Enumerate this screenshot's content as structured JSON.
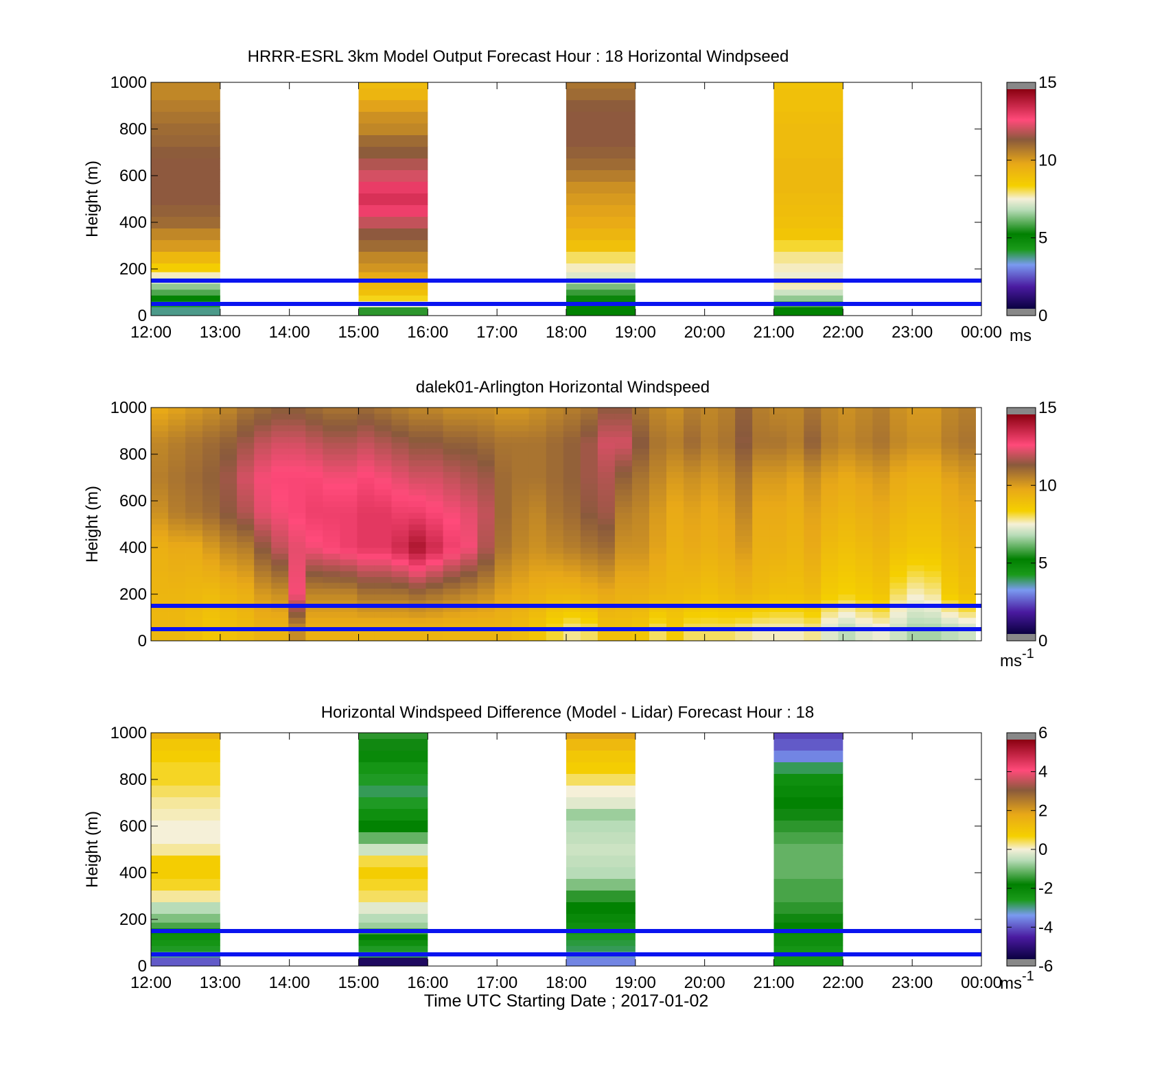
{
  "figure": {
    "xlabel": "Time UTC  Starting Date ; 2017-01-02",
    "reference_heights_m": [
      50,
      150
    ],
    "reference_line_color": "#0a14f0"
  },
  "chart_data": [
    {
      "type": "heatmap",
      "title": "HRRR-ESRL 3km Model Output   Forecast Hour : 18 Horizontal Windpseed",
      "ylabel": "Height (m)",
      "xlim": [
        "12:00",
        "00:00"
      ],
      "ylim": [
        0,
        1000
      ],
      "yticks": [
        "0",
        "200",
        "400",
        "600",
        "800",
        "1000"
      ],
      "xticks": [
        "12:00",
        "13:00",
        "14:00",
        "15:00",
        "16:00",
        "17:00",
        "18:00",
        "19:00",
        "20:00",
        "21:00",
        "22:00",
        "23:00",
        "00:00"
      ],
      "colorbar": {
        "min": 0,
        "max": 15,
        "ticks": [
          "0",
          "5",
          "10",
          "15"
        ],
        "unit": "ms",
        "unit_sup": "",
        "palette": "windspeed"
      },
      "heights_m": [
        25,
        50,
        75,
        100,
        125,
        150,
        175,
        200,
        250,
        300,
        350,
        400,
        450,
        500,
        550,
        600,
        650,
        700,
        750,
        800,
        850,
        900,
        950,
        1000
      ],
      "columns": [
        {
          "start": "12:00",
          "end": "13:00",
          "values": [
            3.5,
            4.0,
            5.0,
            5.8,
            6.4,
            7.0,
            7.6,
            8.5,
            9.3,
            10.2,
            10.6,
            11.2,
            11.4,
            11.6,
            11.6,
            11.6,
            11.6,
            11.5,
            11.3,
            11.2,
            11.0,
            10.8,
            10.6,
            10.6
          ]
        },
        {
          "start": "15:00",
          "end": "16:00",
          "values": [
            5.5,
            7.5,
            8.3,
            9.0,
            9.3,
            9.6,
            9.8,
            10.3,
            10.6,
            11.2,
            11.6,
            12.2,
            13.2,
            13.6,
            13.3,
            12.4,
            12.0,
            11.5,
            11.2,
            10.6,
            10.4,
            10.0,
            9.4,
            9.2
          ]
        },
        {
          "start": "18:00",
          "end": "19:00",
          "values": [
            5.0,
            5.0,
            5.2,
            5.6,
            6.2,
            6.8,
            7.2,
            7.6,
            8.0,
            9.0,
            9.4,
            9.8,
            10.0,
            10.2,
            10.4,
            10.8,
            11.2,
            11.4,
            11.6,
            11.6,
            11.6,
            11.5,
            11.2,
            11.0
          ]
        },
        {
          "start": "21:00",
          "end": "22:00",
          "values": [
            5.0,
            5.8,
            6.4,
            7.0,
            7.6,
            7.8,
            7.4,
            7.6,
            7.8,
            8.2,
            8.8,
            9.0,
            9.1,
            9.2,
            9.3,
            9.3,
            9.3,
            9.2,
            9.2,
            9.2,
            9.1,
            9.0,
            9.0,
            8.9
          ]
        }
      ]
    },
    {
      "type": "heatmap",
      "title": "dalek01-Arlington  Horizontal Windspeed",
      "ylabel": "Height (m)",
      "xlim": [
        "12:00",
        "00:00"
      ],
      "ylim": [
        0,
        1000
      ],
      "yticks": [
        "0",
        "200",
        "400",
        "600",
        "800",
        "1000"
      ],
      "xticks": [],
      "colorbar": {
        "min": 0,
        "max": 15,
        "ticks": [
          "0",
          "5",
          "10",
          "15"
        ],
        "unit": "ms",
        "unit_sup": "-1",
        "palette": "windspeed"
      },
      "x_start": "12:00",
      "x_end": "23:55",
      "column_count": 48,
      "heights_m": [
        50,
        200,
        400,
        550,
        700,
        850,
        1000
      ],
      "values_by_height": [
        [
          9.3,
          9.3,
          9.1,
          8.8,
          9.0,
          9.2,
          9.5,
          9.5,
          10.5,
          9.6,
          9.6,
          9.6,
          9.5,
          9.5,
          9.5,
          9.5,
          9.5,
          9.4,
          9.4,
          9.4,
          9.4,
          9.2,
          8.8,
          8.2,
          7.8,
          8.0,
          9.0,
          9.0,
          8.8,
          8.0,
          8.6,
          8.0,
          8.0,
          8.0,
          7.8,
          7.6,
          7.6,
          7.6,
          7.8,
          7.2,
          6.8,
          7.2,
          7.4,
          7.0,
          6.6,
          6.6,
          6.8,
          7.0
        ],
        [
          9.4,
          9.4,
          9.3,
          9.2,
          9.4,
          9.6,
          10.2,
          10.4,
          12.8,
          10.6,
          10.6,
          10.6,
          11.0,
          11.0,
          11.0,
          11.2,
          11.0,
          10.8,
          10.6,
          10.4,
          10.0,
          9.8,
          9.6,
          9.4,
          9.4,
          9.6,
          9.8,
          9.6,
          9.6,
          9.4,
          9.3,
          9.2,
          9.0,
          9.2,
          9.4,
          9.2,
          9.0,
          9.0,
          9.2,
          8.6,
          8.4,
          8.6,
          8.8,
          8.0,
          7.6,
          7.8,
          8.6,
          9.0
        ],
        [
          9.6,
          9.8,
          9.8,
          10.2,
          10.6,
          10.8,
          11.6,
          12.2,
          12.6,
          12.8,
          13.0,
          13.2,
          13.4,
          13.4,
          13.8,
          14.4,
          13.8,
          13.2,
          12.8,
          12.0,
          11.0,
          10.6,
          10.4,
          10.6,
          10.8,
          11.0,
          11.2,
          10.4,
          10.4,
          10.0,
          9.6,
          9.8,
          9.6,
          9.8,
          10.2,
          9.6,
          9.6,
          9.4,
          9.8,
          9.2,
          9.0,
          9.2,
          9.4,
          9.0,
          8.8,
          8.8,
          9.2,
          9.4
        ],
        [
          10.4,
          10.8,
          11.0,
          11.2,
          11.6,
          12.0,
          12.6,
          12.8,
          13.0,
          13.2,
          13.2,
          13.2,
          13.4,
          13.4,
          13.2,
          13.2,
          13.0,
          12.8,
          12.6,
          12.2,
          11.2,
          10.8,
          10.6,
          11.0,
          11.2,
          11.6,
          11.8,
          10.8,
          10.6,
          10.2,
          9.8,
          10.0,
          9.8,
          10.0,
          10.6,
          9.8,
          9.8,
          9.6,
          10.0,
          9.6,
          9.4,
          9.6,
          9.8,
          9.4,
          9.2,
          9.2,
          9.6,
          9.8
        ],
        [
          10.8,
          11.0,
          11.2,
          11.4,
          11.8,
          12.4,
          12.8,
          13.0,
          13.0,
          13.0,
          12.8,
          12.8,
          13.0,
          12.8,
          12.6,
          12.4,
          12.4,
          12.2,
          12.0,
          11.8,
          11.2,
          11.0,
          11.0,
          11.2,
          11.4,
          11.8,
          12.0,
          11.4,
          11.0,
          10.6,
          10.2,
          10.4,
          10.2,
          10.4,
          11.0,
          10.2,
          10.2,
          10.0,
          10.4,
          10.0,
          9.8,
          10.0,
          10.2,
          9.8,
          9.6,
          9.6,
          10.0,
          10.2
        ],
        [
          10.6,
          10.8,
          11.0,
          11.2,
          11.4,
          11.8,
          12.2,
          12.4,
          12.4,
          12.2,
          12.0,
          12.0,
          12.2,
          12.0,
          11.8,
          11.6,
          11.6,
          11.4,
          11.4,
          11.2,
          11.0,
          11.0,
          11.0,
          11.2,
          11.4,
          11.8,
          12.4,
          12.4,
          11.6,
          11.0,
          10.8,
          11.2,
          10.8,
          11.0,
          11.6,
          11.0,
          11.0,
          10.8,
          11.4,
          10.8,
          10.6,
          10.8,
          11.0,
          10.6,
          10.4,
          10.4,
          10.8,
          11.0
        ],
        [
          9.8,
          10.0,
          10.2,
          10.4,
          10.6,
          11.0,
          11.2,
          11.4,
          11.4,
          11.2,
          11.0,
          11.0,
          11.2,
          11.0,
          10.8,
          10.6,
          10.6,
          10.4,
          10.4,
          10.4,
          10.2,
          10.2,
          10.4,
          10.6,
          10.8,
          11.0,
          11.6,
          11.6,
          11.0,
          10.6,
          10.4,
          10.8,
          10.6,
          10.8,
          11.4,
          10.8,
          10.6,
          10.6,
          11.0,
          10.6,
          10.4,
          10.6,
          10.8,
          10.4,
          10.2,
          10.2,
          10.6,
          10.8
        ]
      ]
    },
    {
      "type": "heatmap",
      "title": "Horizontal Windspeed Difference (Model - Lidar) Forecast Hour : 18",
      "ylabel": "Height (m)",
      "xlim": [
        "12:00",
        "00:00"
      ],
      "ylim": [
        0,
        1000
      ],
      "yticks": [
        "0",
        "200",
        "400",
        "600",
        "800",
        "1000"
      ],
      "xticks": [
        "12:00",
        "13:00",
        "14:00",
        "15:00",
        "16:00",
        "17:00",
        "18:00",
        "19:00",
        "20:00",
        "21:00",
        "22:00",
        "23:00",
        "00:00"
      ],
      "colorbar": {
        "min": -6,
        "max": 6,
        "ticks": [
          "-6",
          "-4",
          "-2",
          "0",
          "2",
          "4",
          "6"
        ],
        "unit": "ms",
        "unit_sup": "-1",
        "palette": "difference"
      },
      "heights_m": [
        25,
        50,
        75,
        100,
        125,
        150,
        175,
        200,
        250,
        300,
        350,
        400,
        450,
        500,
        550,
        600,
        650,
        700,
        750,
        800,
        850,
        900,
        950,
        1000
      ],
      "columns": [
        {
          "start": "12:00",
          "end": "13:00",
          "values": [
            -4.2,
            -3.2,
            -2.8,
            -2.6,
            -2.4,
            -2.2,
            -1.4,
            -1.0,
            -0.6,
            0.2,
            0.6,
            0.8,
            0.8,
            0.2,
            0.0,
            0.0,
            0.1,
            0.2,
            0.4,
            0.6,
            0.6,
            0.8,
            1.0,
            1.6
          ]
        },
        {
          "start": "15:00",
          "end": "16:00",
          "values": [
            -5.6,
            -3.0,
            -2.8,
            -2.4,
            -2.0,
            -1.4,
            -0.8,
            -0.6,
            -0.2,
            0.4,
            0.6,
            0.8,
            0.5,
            -0.4,
            -1.2,
            -2.0,
            -2.4,
            -2.8,
            -3.0,
            -2.8,
            -2.6,
            -2.2,
            -1.8,
            -1.6
          ]
        },
        {
          "start": "18:00",
          "end": "19:00",
          "values": [
            -3.8,
            -3.4,
            -3.0,
            -2.9,
            -2.8,
            -2.6,
            -2.4,
            -2.2,
            -2.0,
            -1.6,
            -1.0,
            -0.6,
            -0.5,
            -0.4,
            -0.5,
            -0.6,
            -0.8,
            -0.2,
            0.0,
            0.4,
            0.8,
            1.0,
            1.4,
            2.0
          ]
        },
        {
          "start": "21:00",
          "end": "22:00",
          "values": [
            -2.6,
            -2.6,
            -2.6,
            -2.4,
            -2.4,
            -2.2,
            -2.0,
            -1.8,
            -1.6,
            -1.4,
            -1.4,
            -1.2,
            -1.2,
            -1.2,
            -1.4,
            -1.6,
            -1.8,
            -2.0,
            -2.2,
            -2.4,
            -3.0,
            -3.8,
            -4.2,
            -4.4
          ]
        }
      ]
    }
  ]
}
